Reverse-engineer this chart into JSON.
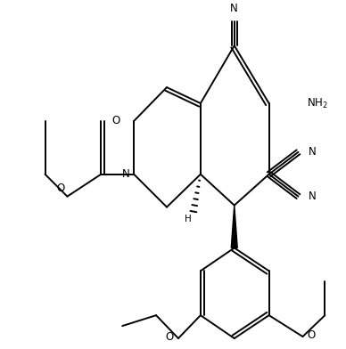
{
  "figsize": [
    3.88,
    3.92
  ],
  "dpi": 100,
  "background": "#ffffff",
  "lc": "#000000",
  "lw": 1.4,
  "fs": 8.5,
  "xlim": [
    0,
    388
  ],
  "ylim": [
    0,
    392
  ]
}
